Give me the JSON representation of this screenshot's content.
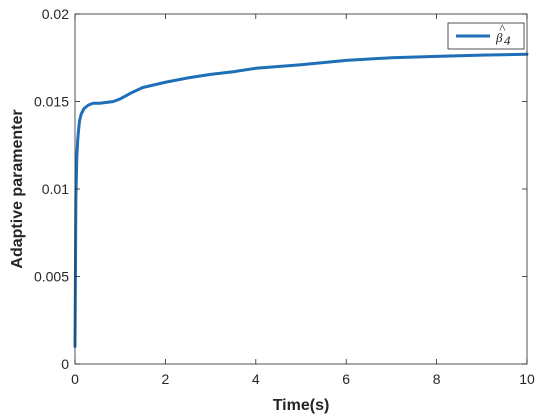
{
  "chart_data": {
    "type": "line",
    "title": "",
    "xlabel": "Time(s)",
    "ylabel": "Adaptive paramenter",
    "xlim": [
      0,
      10
    ],
    "ylim": [
      0,
      0.02
    ],
    "xticks": [
      0,
      2,
      4,
      6,
      8,
      10
    ],
    "xtick_labels": [
      "0",
      "2",
      "4",
      "6",
      "8",
      "10"
    ],
    "yticks": [
      0,
      0.005,
      0.01,
      0.015,
      0.02
    ],
    "ytick_labels": [
      "0",
      "0.005",
      "0.01",
      "0.015",
      "0.02"
    ],
    "grid": false,
    "legend_position": "top-right",
    "series": [
      {
        "name": "β̂4",
        "color": "#1f6fb8",
        "x": [
          0,
          0.02,
          0.04,
          0.06,
          0.08,
          0.1,
          0.14,
          0.2,
          0.3,
          0.4,
          0.55,
          0.7,
          0.85,
          1.0,
          1.25,
          1.5,
          2.0,
          2.5,
          3.0,
          3.5,
          4.0,
          5.0,
          6.0,
          7.0,
          8.0,
          9.0,
          10.0
        ],
        "values": [
          0.001,
          0.0095,
          0.0118,
          0.0128,
          0.0134,
          0.0139,
          0.0143,
          0.0146,
          0.0148,
          0.0149,
          0.0149,
          0.01495,
          0.015,
          0.01515,
          0.0155,
          0.0158,
          0.0161,
          0.01635,
          0.01655,
          0.0167,
          0.0169,
          0.0171,
          0.01735,
          0.0175,
          0.01758,
          0.01765,
          0.0177
        ]
      }
    ]
  },
  "legend": {
    "label_base": "β",
    "label_sub": "4",
    "label_hat": "^"
  }
}
